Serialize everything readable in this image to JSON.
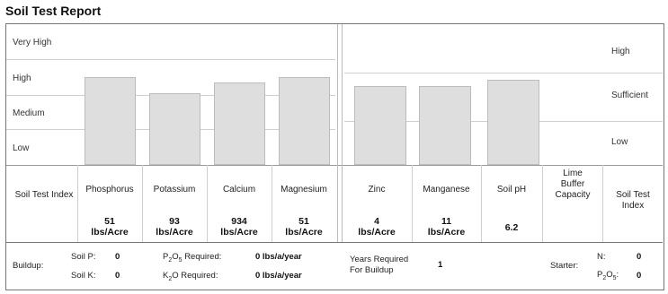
{
  "title": "Soil Test Report",
  "chart_data": [
    {
      "type": "bar",
      "levels": [
        "Very High",
        "High",
        "Medium",
        "Low"
      ],
      "categories": [
        "Phosphorus",
        "Potassium",
        "Calcium",
        "Magnesium"
      ],
      "values": [
        2.5,
        2.05,
        2.35,
        2.5
      ],
      "ylim": [
        0,
        4
      ],
      "label_values": [
        "51",
        "93",
        "934",
        "51"
      ],
      "unit": "lbs/Acre",
      "index_label": "Soil Test Index"
    },
    {
      "type": "bar",
      "levels": [
        "High",
        "Sufficient",
        "Low"
      ],
      "categories": [
        "Zinc",
        "Manganese",
        "Soil pH"
      ],
      "values": [
        1.68,
        1.68,
        1.82
      ],
      "ylim": [
        0,
        3
      ],
      "label_values": [
        "4",
        "11",
        "6.2"
      ],
      "units": [
        "lbs/Acre",
        "lbs/Acre",
        ""
      ],
      "extra_header": "Lime Buffer Capacity",
      "index_label": "Soil Test Index"
    }
  ],
  "footer": {
    "buildup_label": "Buildup:",
    "soil_p_label": "Soil P:",
    "soil_p_value": "0",
    "soil_k_label": "Soil K:",
    "soil_k_value": "0",
    "p2o5_label": "Required:",
    "p2o5_value": "0 lbs/a/year",
    "k2o_label": "Required:",
    "k2o_value": "0 lbs/a/year",
    "years_label_1": "Years Required",
    "years_label_2": "For Buildup",
    "years_value": "1",
    "starter_label": "Starter:",
    "n_label": "N:",
    "n_value": "0",
    "p2o5_starter_value": "0"
  }
}
